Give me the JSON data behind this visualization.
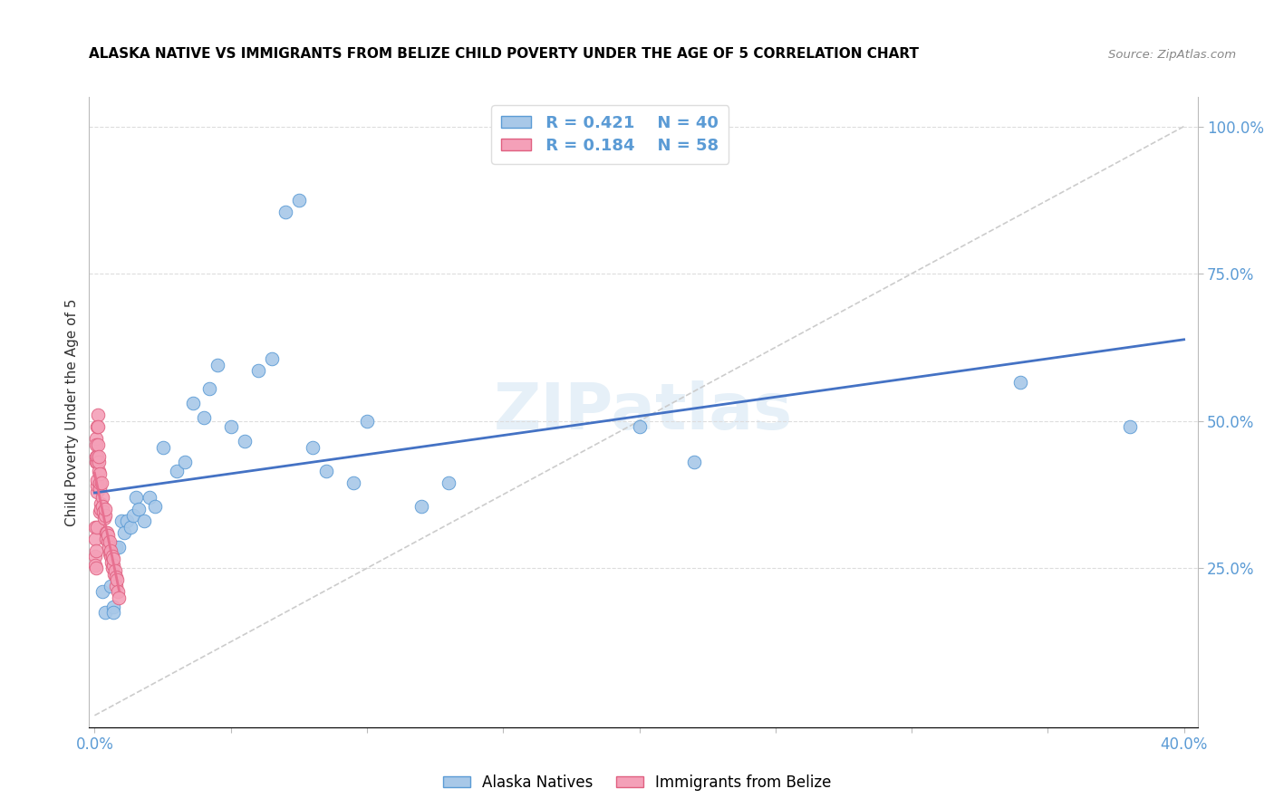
{
  "title": "ALASKA NATIVE VS IMMIGRANTS FROM BELIZE CHILD POVERTY UNDER THE AGE OF 5 CORRELATION CHART",
  "source": "Source: ZipAtlas.com",
  "ylabel_label": "Child Poverty Under the Age of 5",
  "legend_r1": "R = 0.421",
  "legend_n1": "N = 40",
  "legend_r2": "R = 0.184",
  "legend_n2": "N = 58",
  "legend_label1": "Alaska Natives",
  "legend_label2": "Immigrants from Belize",
  "color_blue": "#a8c8e8",
  "color_pink": "#f4a0b8",
  "color_blue_dark": "#5b9bd5",
  "color_pink_dark": "#e06080",
  "color_line_blue": "#4472c4",
  "color_line_pink": "#e87090",
  "watermark": "ZIPatlas",
  "alaska_x": [
    0.003,
    0.004,
    0.006,
    0.007,
    0.007,
    0.008,
    0.009,
    0.01,
    0.011,
    0.012,
    0.013,
    0.014,
    0.015,
    0.016,
    0.018,
    0.02,
    0.022,
    0.025,
    0.03,
    0.033,
    0.036,
    0.04,
    0.042,
    0.045,
    0.05,
    0.055,
    0.06,
    0.065,
    0.07,
    0.075,
    0.08,
    0.085,
    0.095,
    0.1,
    0.12,
    0.13,
    0.2,
    0.22,
    0.34,
    0.38
  ],
  "alaska_y": [
    0.21,
    0.175,
    0.22,
    0.185,
    0.175,
    0.285,
    0.285,
    0.33,
    0.31,
    0.33,
    0.32,
    0.34,
    0.37,
    0.35,
    0.33,
    0.37,
    0.355,
    0.455,
    0.415,
    0.43,
    0.53,
    0.505,
    0.555,
    0.595,
    0.49,
    0.465,
    0.585,
    0.605,
    0.855,
    0.875,
    0.455,
    0.415,
    0.395,
    0.5,
    0.355,
    0.395,
    0.49,
    0.43,
    0.565,
    0.49
  ],
  "belize_x": [
    0.0002,
    0.0002,
    0.0003,
    0.0003,
    0.0004,
    0.0004,
    0.0005,
    0.0005,
    0.0006,
    0.0006,
    0.0007,
    0.0007,
    0.0008,
    0.0008,
    0.0009,
    0.001,
    0.001,
    0.0011,
    0.0012,
    0.0013,
    0.0014,
    0.0015,
    0.0016,
    0.0017,
    0.0018,
    0.0019,
    0.002,
    0.0021,
    0.0022,
    0.0025,
    0.0027,
    0.003,
    0.0032,
    0.0035,
    0.0037,
    0.0039,
    0.0041,
    0.0043,
    0.0046,
    0.0048,
    0.005,
    0.0052,
    0.0054,
    0.0056,
    0.0058,
    0.006,
    0.0062,
    0.0064,
    0.0066,
    0.0068,
    0.007,
    0.0072,
    0.0075,
    0.0078,
    0.008,
    0.0082,
    0.0085,
    0.0088
  ],
  "belize_y": [
    0.27,
    0.255,
    0.32,
    0.3,
    0.28,
    0.25,
    0.44,
    0.43,
    0.47,
    0.46,
    0.38,
    0.32,
    0.49,
    0.43,
    0.39,
    0.44,
    0.4,
    0.51,
    0.49,
    0.46,
    0.415,
    0.43,
    0.44,
    0.385,
    0.395,
    0.41,
    0.345,
    0.36,
    0.35,
    0.395,
    0.37,
    0.355,
    0.345,
    0.335,
    0.34,
    0.35,
    0.31,
    0.3,
    0.31,
    0.295,
    0.305,
    0.285,
    0.295,
    0.275,
    0.27,
    0.28,
    0.26,
    0.27,
    0.25,
    0.255,
    0.265,
    0.24,
    0.245,
    0.235,
    0.22,
    0.23,
    0.21,
    0.2
  ],
  "xmin": 0.0,
  "xmax": 0.4,
  "ymin": 0.0,
  "ymax": 1.0,
  "yticks": [
    0.25,
    0.5,
    0.75,
    1.0
  ],
  "xticks": [
    0.0,
    0.05,
    0.1,
    0.15,
    0.2,
    0.25,
    0.3,
    0.35,
    0.4
  ]
}
